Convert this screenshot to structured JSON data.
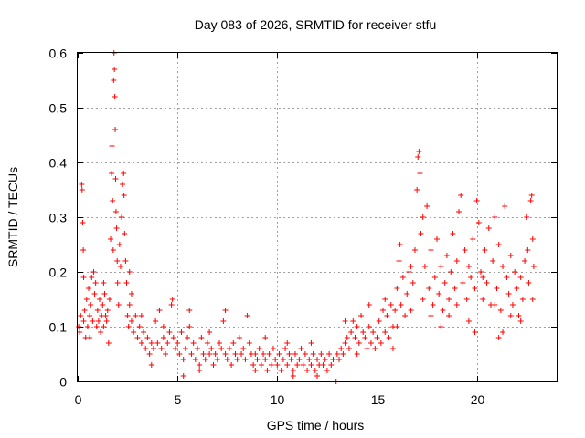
{
  "chart_data": {
    "type": "scatter",
    "title": "Day 083 of 2026, SRMTID for receiver stfu",
    "xlabel": "GPS time / hours",
    "ylabel": "SRMTID / TECUs",
    "xlim": [
      0,
      24
    ],
    "ylim": [
      0,
      0.6
    ],
    "xticks": [
      0,
      5,
      10,
      15,
      20
    ],
    "xtick_labels": [
      "0",
      "5",
      "10",
      "15",
      "20"
    ],
    "yticks": [
      0,
      0.1,
      0.2,
      0.3,
      0.4,
      0.5,
      0.6
    ],
    "ytick_labels": [
      "0",
      "0.1",
      "0.2",
      "0.3",
      "0.4",
      "0.5",
      "0.6"
    ],
    "grid": true,
    "marker": "+",
    "color": "#ff0000",
    "series": [
      {
        "name": "SRMTID",
        "points": [
          [
            0.05,
            0.1
          ],
          [
            0.1,
            0.09
          ],
          [
            0.15,
            0.12
          ],
          [
            0.2,
            0.36
          ],
          [
            0.22,
            0.35
          ],
          [
            0.25,
            0.29
          ],
          [
            0.28,
            0.24
          ],
          [
            0.3,
            0.11
          ],
          [
            0.35,
            0.13
          ],
          [
            0.4,
            0.08
          ],
          [
            0.45,
            0.15
          ],
          [
            0.5,
            0.1
          ],
          [
            0.55,
            0.17
          ],
          [
            0.6,
            0.12
          ],
          [
            0.65,
            0.14
          ],
          [
            0.7,
            0.19
          ],
          [
            0.75,
            0.11
          ],
          [
            0.8,
            0.2
          ],
          [
            0.85,
            0.16
          ],
          [
            0.9,
            0.18
          ],
          [
            0.95,
            0.1
          ],
          [
            1.0,
            0.13
          ],
          [
            1.05,
            0.11
          ],
          [
            1.1,
            0.15
          ],
          [
            1.15,
            0.09
          ],
          [
            1.2,
            0.12
          ],
          [
            1.25,
            0.14
          ],
          [
            1.3,
            0.1
          ],
          [
            1.35,
            0.16
          ],
          [
            1.4,
            0.12
          ],
          [
            1.45,
            0.11
          ],
          [
            1.5,
            0.13
          ],
          [
            1.55,
            0.07
          ],
          [
            1.6,
            0.15
          ],
          [
            1.65,
            0.26
          ],
          [
            1.7,
            0.38
          ],
          [
            1.72,
            0.43
          ],
          [
            1.75,
            0.33
          ],
          [
            1.78,
            0.24
          ],
          [
            1.8,
            0.55
          ],
          [
            1.82,
            0.6
          ],
          [
            1.84,
            0.57
          ],
          [
            1.86,
            0.52
          ],
          [
            1.88,
            0.46
          ],
          [
            1.9,
            0.37
          ],
          [
            1.92,
            0.31
          ],
          [
            1.95,
            0.28
          ],
          [
            1.98,
            0.22
          ],
          [
            2.0,
            0.18
          ],
          [
            2.05,
            0.14
          ],
          [
            2.1,
            0.25
          ],
          [
            2.15,
            0.21
          ],
          [
            2.2,
            0.3
          ],
          [
            2.25,
            0.36
          ],
          [
            2.3,
            0.38
          ],
          [
            2.32,
            0.34
          ],
          [
            2.35,
            0.27
          ],
          [
            2.4,
            0.22
          ],
          [
            2.45,
            0.18
          ],
          [
            2.5,
            0.12
          ],
          [
            2.55,
            0.1
          ],
          [
            2.6,
            0.14
          ],
          [
            2.7,
            0.11
          ],
          [
            2.8,
            0.09
          ],
          [
            2.9,
            0.12
          ],
          [
            3.0,
            0.08
          ],
          [
            3.1,
            0.1
          ],
          [
            3.2,
            0.07
          ],
          [
            3.3,
            0.09
          ],
          [
            3.4,
            0.06
          ],
          [
            3.5,
            0.08
          ],
          [
            3.6,
            0.05
          ],
          [
            3.7,
            0.07
          ],
          [
            3.8,
            0.06
          ],
          [
            3.9,
            0.11
          ],
          [
            4.0,
            0.07
          ],
          [
            4.1,
            0.13
          ],
          [
            4.2,
            0.06
          ],
          [
            4.3,
            0.08
          ],
          [
            4.4,
            0.05
          ],
          [
            4.5,
            0.07
          ],
          [
            4.6,
            0.09
          ],
          [
            4.7,
            0.14
          ],
          [
            4.75,
            0.15
          ],
          [
            4.8,
            0.08
          ],
          [
            4.9,
            0.06
          ],
          [
            5.0,
            0.07
          ],
          [
            5.1,
            0.05
          ],
          [
            5.2,
            0.09
          ],
          [
            5.3,
            0.04
          ],
          [
            5.4,
            0.06
          ],
          [
            5.5,
            0.08
          ],
          [
            5.6,
            0.1
          ],
          [
            5.7,
            0.05
          ],
          [
            5.8,
            0.07
          ],
          [
            5.9,
            0.04
          ],
          [
            6.0,
            0.06
          ],
          [
            6.1,
            0.03
          ],
          [
            6.2,
            0.08
          ],
          [
            6.3,
            0.05
          ],
          [
            6.4,
            0.04
          ],
          [
            6.5,
            0.07
          ],
          [
            6.6,
            0.05
          ],
          [
            6.7,
            0.06
          ],
          [
            6.8,
            0.03
          ],
          [
            6.9,
            0.05
          ],
          [
            7.0,
            0.04
          ],
          [
            7.1,
            0.07
          ],
          [
            7.2,
            0.06
          ],
          [
            7.3,
            0.11
          ],
          [
            7.4,
            0.05
          ],
          [
            7.5,
            0.04
          ],
          [
            7.6,
            0.06
          ],
          [
            7.7,
            0.03
          ],
          [
            7.8,
            0.07
          ],
          [
            7.9,
            0.05
          ],
          [
            8.0,
            0.04
          ],
          [
            8.1,
            0.08
          ],
          [
            8.2,
            0.05
          ],
          [
            8.3,
            0.06
          ],
          [
            8.4,
            0.04
          ],
          [
            8.5,
            0.12
          ],
          [
            8.6,
            0.07
          ],
          [
            8.7,
            0.05
          ],
          [
            8.8,
            0.03
          ],
          [
            8.9,
            0.05
          ],
          [
            9.0,
            0.04
          ],
          [
            9.1,
            0.06
          ],
          [
            9.2,
            0.03
          ],
          [
            9.3,
            0.05
          ],
          [
            9.4,
            0.04
          ],
          [
            9.5,
            0.02
          ],
          [
            9.6,
            0.05
          ],
          [
            9.7,
            0.03
          ],
          [
            9.8,
            0.06
          ],
          [
            9.9,
            0.04
          ],
          [
            10.0,
            0.03
          ],
          [
            10.1,
            0.05
          ],
          [
            10.2,
            0.02
          ],
          [
            10.3,
            0.04
          ],
          [
            10.4,
            0.06
          ],
          [
            10.5,
            0.03
          ],
          [
            10.6,
            0.05
          ],
          [
            10.7,
            0.04
          ],
          [
            10.8,
            0.02
          ],
          [
            10.9,
            0.05
          ],
          [
            11.0,
            0.03
          ],
          [
            11.1,
            0.04
          ],
          [
            11.2,
            0.06
          ],
          [
            11.3,
            0.03
          ],
          [
            11.4,
            0.05
          ],
          [
            11.5,
            0.02
          ],
          [
            11.6,
            0.04
          ],
          [
            11.7,
            0.03
          ],
          [
            11.8,
            0.05
          ],
          [
            11.9,
            0.02
          ],
          [
            12.0,
            0.04
          ],
          [
            12.1,
            0.03
          ],
          [
            12.2,
            0.05
          ],
          [
            12.3,
            0.03
          ],
          [
            12.4,
            0.04
          ],
          [
            12.5,
            0.02
          ],
          [
            12.6,
            0.05
          ],
          [
            12.7,
            0.03
          ],
          [
            12.8,
            0.04
          ],
          [
            12.9,
            0.0
          ],
          [
            12.95,
            0.0
          ],
          [
            13.0,
            0.05
          ],
          [
            13.1,
            0.04
          ],
          [
            13.2,
            0.06
          ],
          [
            13.3,
            0.05
          ],
          [
            13.4,
            0.07
          ],
          [
            13.5,
            0.08
          ],
          [
            13.6,
            0.06
          ],
          [
            13.7,
            0.09
          ],
          [
            13.8,
            0.11
          ],
          [
            13.9,
            0.08
          ],
          [
            14.0,
            0.1
          ],
          [
            14.1,
            0.07
          ],
          [
            14.2,
            0.12
          ],
          [
            14.3,
            0.09
          ],
          [
            14.4,
            0.08
          ],
          [
            14.5,
            0.06
          ],
          [
            14.6,
            0.1
          ],
          [
            14.7,
            0.07
          ],
          [
            14.8,
            0.09
          ],
          [
            14.9,
            0.06
          ],
          [
            15.0,
            0.08
          ],
          [
            15.1,
            0.11
          ],
          [
            15.2,
            0.07
          ],
          [
            15.3,
            0.13
          ],
          [
            15.4,
            0.09
          ],
          [
            15.5,
            0.12
          ],
          [
            15.6,
            0.08
          ],
          [
            15.7,
            0.14
          ],
          [
            15.8,
            0.1
          ],
          [
            15.9,
            0.13
          ],
          [
            16.0,
            0.17
          ],
          [
            16.1,
            0.22
          ],
          [
            16.15,
            0.25
          ],
          [
            16.2,
            0.14
          ],
          [
            16.3,
            0.19
          ],
          [
            16.4,
            0.12
          ],
          [
            16.5,
            0.16
          ],
          [
            16.6,
            0.2
          ],
          [
            16.7,
            0.13
          ],
          [
            16.8,
            0.18
          ],
          [
            16.9,
            0.24
          ],
          [
            17.0,
            0.35
          ],
          [
            17.05,
            0.41
          ],
          [
            17.1,
            0.42
          ],
          [
            17.15,
            0.38
          ],
          [
            17.2,
            0.27
          ],
          [
            17.3,
            0.15
          ],
          [
            17.4,
            0.21
          ],
          [
            17.5,
            0.32
          ],
          [
            17.6,
            0.17
          ],
          [
            17.7,
            0.24
          ],
          [
            17.8,
            0.14
          ],
          [
            17.9,
            0.19
          ],
          [
            18.0,
            0.26
          ],
          [
            18.1,
            0.16
          ],
          [
            18.2,
            0.21
          ],
          [
            18.3,
            0.13
          ],
          [
            18.4,
            0.18
          ],
          [
            18.5,
            0.23
          ],
          [
            18.6,
            0.15
          ],
          [
            18.7,
            0.2
          ],
          [
            18.8,
            0.27
          ],
          [
            18.9,
            0.17
          ],
          [
            19.0,
            0.22
          ],
          [
            19.1,
            0.31
          ],
          [
            19.2,
            0.34
          ],
          [
            19.3,
            0.18
          ],
          [
            19.4,
            0.24
          ],
          [
            19.5,
            0.15
          ],
          [
            19.6,
            0.21
          ],
          [
            19.7,
            0.19
          ],
          [
            19.8,
            0.26
          ],
          [
            19.9,
            0.17
          ],
          [
            20.0,
            0.33
          ],
          [
            20.1,
            0.29
          ],
          [
            20.2,
            0.2
          ],
          [
            20.3,
            0.15
          ],
          [
            20.4,
            0.24
          ],
          [
            20.5,
            0.18
          ],
          [
            20.6,
            0.28
          ],
          [
            20.7,
            0.14
          ],
          [
            20.8,
            0.22
          ],
          [
            20.9,
            0.3
          ],
          [
            21.0,
            0.17
          ],
          [
            21.1,
            0.25
          ],
          [
            21.2,
            0.13
          ],
          [
            21.3,
            0.21
          ],
          [
            21.4,
            0.32
          ],
          [
            21.5,
            0.19
          ],
          [
            21.6,
            0.16
          ],
          [
            21.7,
            0.23
          ],
          [
            21.8,
            0.14
          ],
          [
            21.9,
            0.2
          ],
          [
            22.0,
            0.17
          ],
          [
            22.1,
            0.12
          ],
          [
            22.2,
            0.19
          ],
          [
            22.3,
            0.15
          ],
          [
            22.4,
            0.22
          ],
          [
            22.5,
            0.3
          ],
          [
            22.55,
            0.24
          ],
          [
            22.6,
            0.18
          ],
          [
            22.7,
            0.33
          ],
          [
            22.75,
            0.34
          ],
          [
            22.8,
            0.26
          ],
          [
            22.85,
            0.21
          ],
          [
            0.3,
            0.19
          ],
          [
            0.6,
            0.08
          ],
          [
            1.3,
            0.18
          ],
          [
            2.6,
            0.2
          ],
          [
            2.7,
            0.16
          ],
          [
            3.2,
            0.12
          ],
          [
            4.3,
            0.1
          ],
          [
            5.6,
            0.13
          ],
          [
            6.6,
            0.09
          ],
          [
            7.4,
            0.13
          ],
          [
            9.4,
            0.08
          ],
          [
            10.5,
            0.07
          ],
          [
            11.7,
            0.07
          ],
          [
            13.4,
            0.11
          ],
          [
            14.6,
            0.14
          ],
          [
            15.4,
            0.15
          ],
          [
            16.0,
            0.1
          ],
          [
            16.7,
            0.21
          ],
          [
            17.3,
            0.3
          ],
          [
            18.2,
            0.1
          ],
          [
            18.6,
            0.12
          ],
          [
            19.0,
            0.14
          ],
          [
            19.6,
            0.11
          ],
          [
            20.3,
            0.19
          ],
          [
            20.9,
            0.14
          ],
          [
            21.3,
            0.09
          ],
          [
            21.7,
            0.12
          ],
          [
            22.2,
            0.11
          ],
          [
            22.8,
            0.15
          ],
          [
            17.7,
            0.12
          ],
          [
            3.7,
            0.03
          ],
          [
            5.3,
            0.01
          ],
          [
            6.1,
            0.02
          ],
          [
            8.9,
            0.02
          ],
          [
            10.8,
            0.01
          ],
          [
            12.0,
            0.01
          ],
          [
            14.0,
            0.05
          ],
          [
            15.8,
            0.06
          ],
          [
            19.9,
            0.09
          ],
          [
            21.1,
            0.08
          ]
        ]
      }
    ]
  }
}
